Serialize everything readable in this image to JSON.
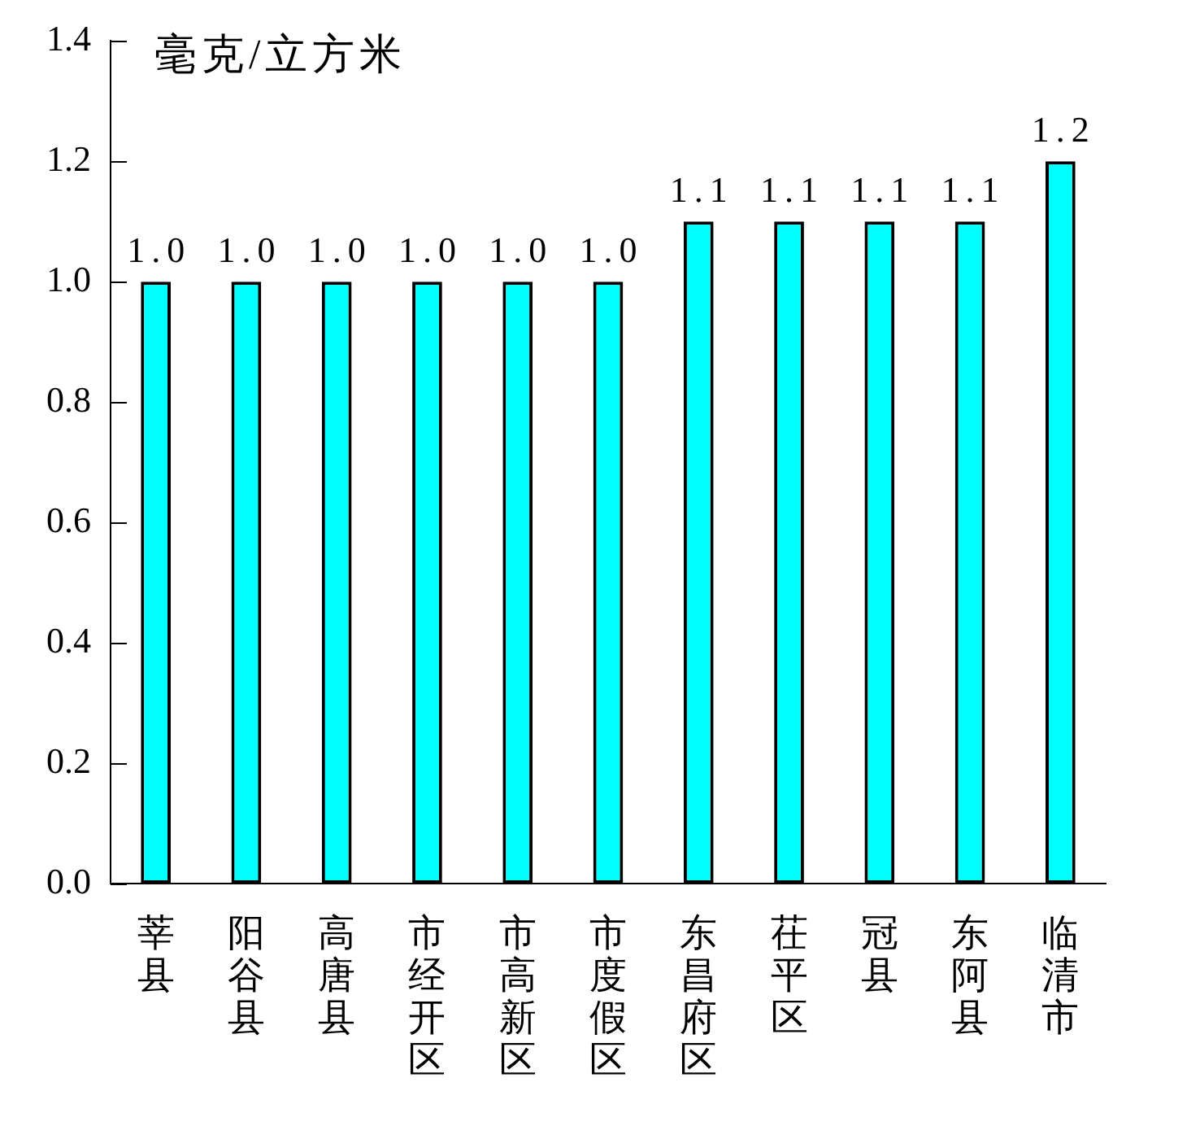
{
  "chart_data": {
    "type": "bar",
    "ylabel": "毫克/立方米",
    "categories": [
      "莘县",
      "阳谷县",
      "高唐县",
      "市经开区",
      "市高新区",
      "市度假区",
      "东昌府区",
      "茌平区",
      "冠县",
      "东阿县",
      "临清市"
    ],
    "values": [
      1.0,
      1.0,
      1.0,
      1.0,
      1.0,
      1.0,
      1.1,
      1.1,
      1.1,
      1.1,
      1.2
    ],
    "value_labels": [
      "1.0",
      "1.0",
      "1.0",
      "1.0",
      "1.0",
      "1.0",
      "1.1",
      "1.1",
      "1.1",
      "1.1",
      "1.2"
    ],
    "color": "#00ffff",
    "ylim": [
      0,
      1.4
    ],
    "yticks": [
      {
        "value": 0,
        "label": "0.0"
      },
      {
        "value": 0.2,
        "label": "0.2"
      },
      {
        "value": 0.4,
        "label": "0.4"
      },
      {
        "value": 0.6,
        "label": "0.6"
      },
      {
        "value": 0.8,
        "label": "0.8"
      },
      {
        "value": 1.0,
        "label": "1.0"
      },
      {
        "value": 1.2,
        "label": "1.2"
      },
      {
        "value": 1.4,
        "label": "1.4"
      }
    ]
  }
}
